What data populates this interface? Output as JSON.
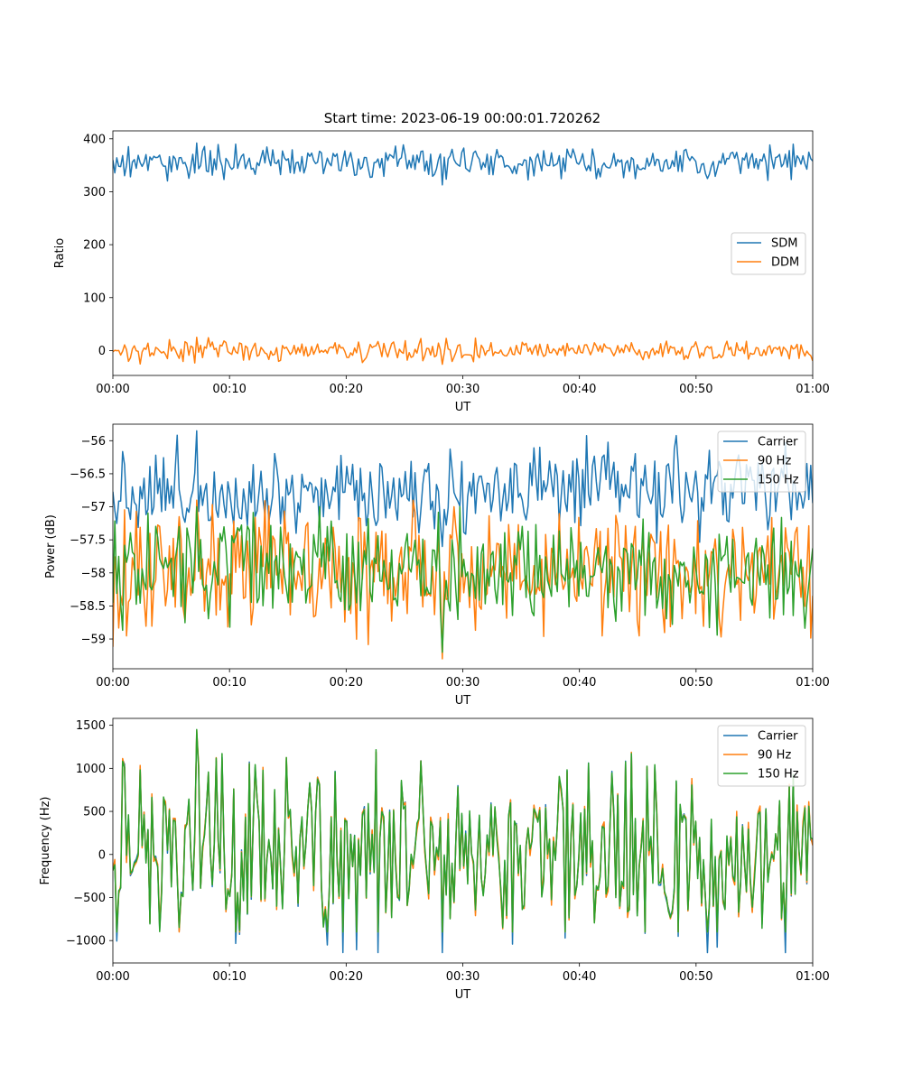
{
  "figure": {
    "title": "Start time: 2023-06-19 00:00:01.720262"
  },
  "chart_data": [
    {
      "type": "line",
      "xlabel": "UT",
      "ylabel": "Ratio",
      "xlim": [
        "00:00",
        "01:00"
      ],
      "ylim": [
        -47,
        415
      ],
      "x_ticks": [
        "00:00",
        "00:10",
        "00:20",
        "00:30",
        "00:40",
        "00:50",
        "01:00"
      ],
      "y_ticks": [
        0,
        100,
        200,
        300,
        400
      ],
      "legend_position": "center-right",
      "grid": false,
      "series": [
        {
          "name": "SDM",
          "color": "#1f77b4",
          "summary": {
            "mean": 355,
            "min": 313,
            "max": 392,
            "samples": 360
          }
        },
        {
          "name": "DDM",
          "color": "#ff7f0e",
          "summary": {
            "mean": 0,
            "min": -26,
            "max": 25,
            "samples": 360
          }
        }
      ]
    },
    {
      "type": "line",
      "xlabel": "UT",
      "ylabel": "Power (dB)",
      "xlim": [
        "00:00",
        "01:00"
      ],
      "ylim": [
        -59.45,
        -55.75
      ],
      "x_ticks": [
        "00:00",
        "00:10",
        "00:20",
        "00:30",
        "00:40",
        "00:50",
        "01:00"
      ],
      "y_ticks": [
        -56.0,
        -56.5,
        -57.0,
        -57.5,
        -58.0,
        -58.5,
        -59.0
      ],
      "legend_position": "top-right",
      "grid": false,
      "series": [
        {
          "name": "Carrier",
          "color": "#1f77b4",
          "summary": {
            "mean": -56.75,
            "min": -57.6,
            "max": -55.85,
            "samples": 360
          }
        },
        {
          "name": "90 Hz",
          "color": "#ff7f0e",
          "summary": {
            "mean": -57.95,
            "min": -59.3,
            "max": -56.9,
            "samples": 360
          }
        },
        {
          "name": "150 Hz",
          "color": "#2ca02c",
          "summary": {
            "mean": -57.95,
            "min": -59.2,
            "max": -57.0,
            "samples": 360
          }
        }
      ]
    },
    {
      "type": "line",
      "xlabel": "UT",
      "ylabel": "Frequency (Hz)",
      "xlim": [
        "00:00",
        "01:00"
      ],
      "ylim": [
        -1260,
        1580
      ],
      "x_ticks": [
        "00:00",
        "00:10",
        "00:20",
        "00:30",
        "00:40",
        "00:50",
        "01:00"
      ],
      "y_ticks": [
        1500,
        1000,
        500,
        0,
        -500,
        -1000
      ],
      "legend_position": "top-right",
      "grid": false,
      "series": [
        {
          "name": "Carrier",
          "color": "#1f77b4",
          "summary": {
            "mean": -50,
            "min": -1140,
            "max": 1400,
            "samples": 360
          }
        },
        {
          "name": "90 Hz",
          "color": "#ff7f0e",
          "summary": {
            "mean": 0,
            "min": -900,
            "max": 1440,
            "samples": 360
          }
        },
        {
          "name": "150 Hz",
          "color": "#2ca02c",
          "summary": {
            "mean": 0,
            "min": -900,
            "max": 1450,
            "samples": 360
          }
        }
      ]
    }
  ]
}
